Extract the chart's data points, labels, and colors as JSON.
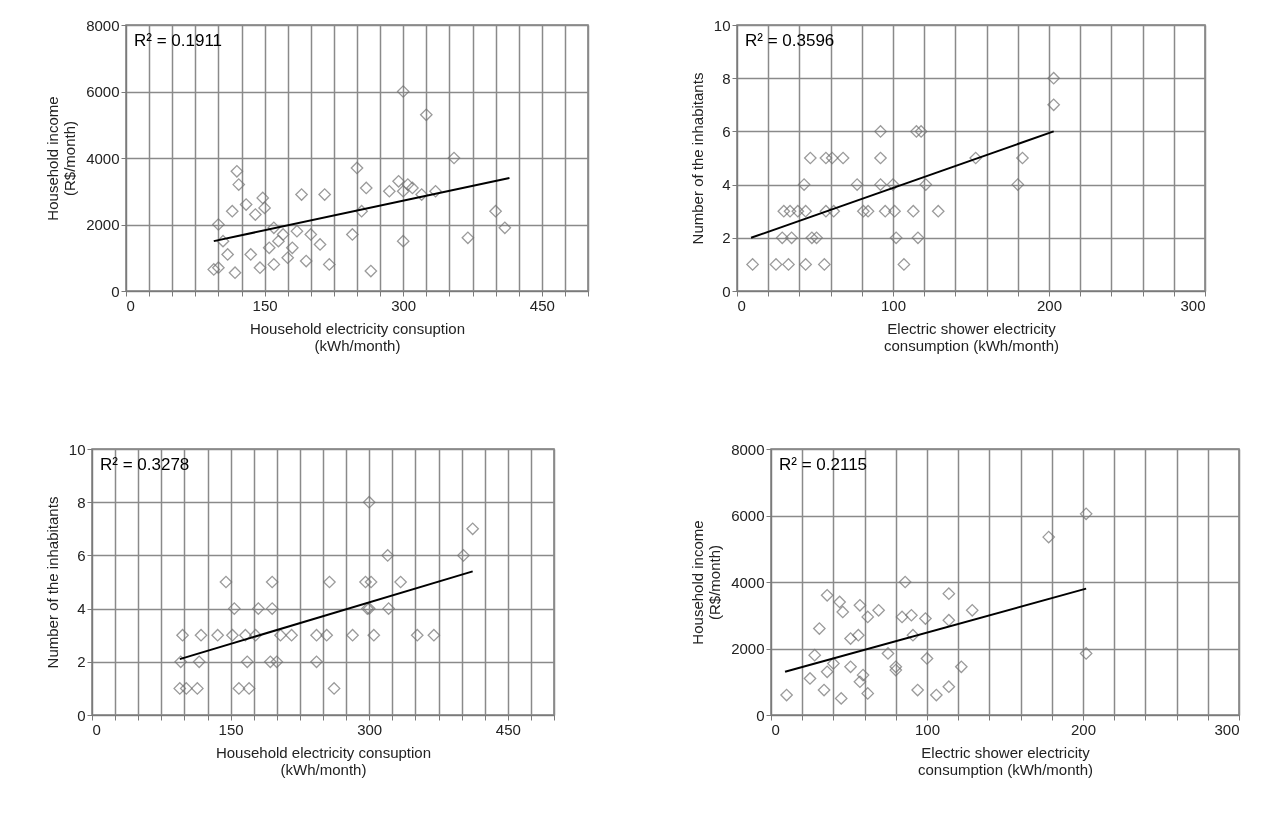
{
  "chart_data": [
    {
      "type": "scatter",
      "xlabel": "Household electricity consuption\n(kWh/month)",
      "ylabel": "Household income\n(R$/month)",
      "annotations": [
        "R² = 0.1911"
      ],
      "marker": "diamond",
      "grid": true,
      "xlim": [
        0,
        500
      ],
      "xticks": [
        0,
        {
          "value": 25,
          "label": null
        },
        {
          "value": 50,
          "label": null
        },
        {
          "value": 75,
          "label": null
        },
        {
          "value": 100,
          "label": null
        },
        {
          "value": 125,
          "label": null
        },
        150,
        {
          "value": 175,
          "label": null
        },
        {
          "value": 200,
          "label": null
        },
        {
          "value": 225,
          "label": null
        },
        {
          "value": 250,
          "label": null
        },
        {
          "value": 275,
          "label": null
        },
        300,
        {
          "value": 325,
          "label": null
        },
        {
          "value": 350,
          "label": null
        },
        {
          "value": 375,
          "label": null
        },
        {
          "value": 400,
          "label": null
        },
        {
          "value": 425,
          "label": null
        },
        450,
        {
          "value": 475,
          "label": null
        },
        {
          "value": 500,
          "label": null
        }
      ],
      "ylim": [
        0,
        8000
      ],
      "yticks": [
        0,
        2000,
        4000,
        6000,
        8000
      ],
      "series": [
        {
          "color": "#707070",
          "x": [
            95,
            100,
            100,
            105,
            110,
            115,
            118,
            120,
            122,
            130,
            135,
            140,
            145,
            148,
            150,
            155,
            160,
            160,
            165,
            170,
            175,
            180,
            185,
            190,
            195,
            200,
            210,
            215,
            220,
            245,
            250,
            255,
            260,
            265,
            285,
            295,
            300,
            300,
            300,
            305,
            310,
            320,
            325,
            335,
            355,
            370,
            400,
            410
          ],
          "values": [
            650,
            700,
            2000,
            1500,
            1100,
            2400,
            550,
            3600,
            3200,
            2600,
            1100,
            2300,
            700,
            2800,
            2500,
            1300,
            800,
            1900,
            1500,
            1700,
            1000,
            1300,
            1800,
            2900,
            900,
            1700,
            1400,
            2900,
            800,
            1700,
            3700,
            2400,
            3100,
            600,
            3000,
            3300,
            6000,
            1500,
            3000,
            3200,
            3100,
            2900,
            5300,
            3000,
            4000,
            1600,
            2400,
            1900
          ]
        },
        {
          "type": "line",
          "marker": "none",
          "color": "#000000",
          "x": [
            95,
            415
          ],
          "values": [
            1500,
            3400
          ]
        }
      ]
    },
    {
      "type": "scatter",
      "xlabel": "Electric shower electricity\nconsumption (kWh/month)",
      "ylabel": "Number of the inhabitants",
      "annotations": [
        "R² = 0.3596"
      ],
      "marker": "diamond",
      "grid": true,
      "xlim": [
        0,
        300
      ],
      "xticks": [
        0,
        {
          "value": 20,
          "label": null
        },
        {
          "value": 40,
          "label": null
        },
        {
          "value": 60,
          "label": null
        },
        {
          "value": 80,
          "label": null
        },
        100,
        {
          "value": 120,
          "label": null
        },
        {
          "value": 140,
          "label": null
        },
        {
          "value": 160,
          "label": null
        },
        {
          "value": 180,
          "label": null
        },
        200,
        {
          "value": 220,
          "label": null
        },
        {
          "value": 240,
          "label": null
        },
        {
          "value": 260,
          "label": null
        },
        {
          "value": 280,
          "label": null
        },
        300
      ],
      "ylim": [
        0,
        10
      ],
      "yticks": [
        0,
        2,
        4,
        6,
        8,
        10
      ],
      "series": [
        {
          "color": "#707070",
          "x": [
            10,
            25,
            33,
            44,
            56,
            107,
            29,
            35,
            48,
            51,
            102,
            116,
            30,
            34,
            39,
            44,
            57,
            62,
            81,
            84,
            95,
            101,
            113,
            129,
            43,
            77,
            92,
            100,
            121,
            180,
            47,
            57,
            61,
            68,
            92,
            153,
            183,
            92,
            115,
            118,
            203,
            203
          ],
          "values": [
            1,
            1,
            1,
            1,
            1,
            1,
            2,
            2,
            2,
            2,
            2,
            2,
            3,
            3,
            3,
            3,
            3,
            3,
            3,
            3,
            3,
            3,
            3,
            3,
            4,
            4,
            4,
            4,
            4,
            4,
            5,
            5,
            5,
            5,
            5,
            5,
            5,
            6,
            6,
            6,
            7,
            8
          ]
        },
        {
          "type": "line",
          "marker": "none",
          "color": "#000000",
          "x": [
            9,
            203
          ],
          "values": [
            2,
            6
          ]
        }
      ]
    },
    {
      "type": "scatter",
      "xlabel": "Household electricity consuption\n(kWh/month)",
      "ylabel": "Number of the inhabitants",
      "annotations": [
        "R² = 0.3278"
      ],
      "marker": "diamond",
      "grid": true,
      "xlim": [
        0,
        500
      ],
      "xticks": [
        0,
        {
          "value": 25,
          "label": null
        },
        {
          "value": 50,
          "label": null
        },
        {
          "value": 75,
          "label": null
        },
        {
          "value": 100,
          "label": null
        },
        {
          "value": 125,
          "label": null
        },
        150,
        {
          "value": 175,
          "label": null
        },
        {
          "value": 200,
          "label": null
        },
        {
          "value": 225,
          "label": null
        },
        {
          "value": 250,
          "label": null
        },
        {
          "value": 275,
          "label": null
        },
        300,
        {
          "value": 325,
          "label": null
        },
        {
          "value": 350,
          "label": null
        },
        {
          "value": 375,
          "label": null
        },
        {
          "value": 400,
          "label": null
        },
        {
          "value": 425,
          "label": null
        },
        450,
        {
          "value": 475,
          "label": null
        },
        {
          "value": 500,
          "label": null
        }
      ],
      "ylim": [
        0,
        10
      ],
      "yticks": [
        0,
        2,
        4,
        6,
        8,
        10
      ],
      "series": [
        {
          "color": "#707070",
          "x": [
            95,
            102,
            114,
            159,
            170,
            262,
            96,
            116,
            168,
            193,
            200,
            243,
            98,
            118,
            136,
            152,
            166,
            177,
            204,
            216,
            243,
            254,
            282,
            305,
            352,
            370,
            154,
            180,
            195,
            298,
            300,
            321,
            145,
            195,
            257,
            296,
            302,
            334,
            320,
            402,
            412,
            300
          ],
          "values": [
            1,
            1,
            1,
            1,
            1,
            1,
            2,
            2,
            2,
            2,
            2,
            2,
            3,
            3,
            3,
            3,
            3,
            3,
            3,
            3,
            3,
            3,
            3,
            3,
            3,
            3,
            4,
            4,
            4,
            4,
            4,
            4,
            5,
            5,
            5,
            5,
            5,
            5,
            6,
            6,
            7,
            8
          ]
        },
        {
          "type": "line",
          "marker": "none",
          "color": "#000000",
          "x": [
            95,
            412
          ],
          "values": [
            2.1,
            5.4
          ]
        }
      ]
    },
    {
      "type": "scatter",
      "xlabel": "Electric shower electricity\nconsumption (kWh/month)",
      "ylabel": "Household income\n(R$/month)",
      "annotations": [
        "R² = 0.2115"
      ],
      "marker": "diamond",
      "grid": true,
      "xlim": [
        0,
        300
      ],
      "xticks": [
        0,
        {
          "value": 20,
          "label": null
        },
        {
          "value": 40,
          "label": null
        },
        {
          "value": 60,
          "label": null
        },
        {
          "value": 80,
          "label": null
        },
        100,
        {
          "value": 120,
          "label": null
        },
        {
          "value": 140,
          "label": null
        },
        {
          "value": 160,
          "label": null
        },
        {
          "value": 180,
          "label": null
        },
        200,
        {
          "value": 220,
          "label": null
        },
        {
          "value": 240,
          "label": null
        },
        {
          "value": 260,
          "label": null
        },
        {
          "value": 280,
          "label": null
        },
        300
      ],
      "ylim": [
        0,
        8000
      ],
      "yticks": [
        0,
        2000,
        4000,
        6000,
        8000
      ],
      "series": [
        {
          "color": "#707070",
          "x": [
            10,
            25,
            28,
            31,
            36,
            34,
            36,
            40,
            44,
            45,
            46,
            51,
            51,
            56,
            57,
            57,
            59,
            62,
            62,
            69,
            75,
            80,
            80,
            84,
            86,
            90,
            91,
            94,
            99,
            100,
            106,
            114,
            114,
            114,
            122,
            129,
            178,
            202,
            202
          ],
          "values": [
            600,
            1100,
            1800,
            2600,
            3600,
            750,
            1300,
            1550,
            3400,
            500,
            3100,
            2300,
            1450,
            2400,
            3300,
            1000,
            1200,
            650,
            2950,
            3150,
            1850,
            1350,
            1450,
            2950,
            4000,
            3000,
            2400,
            750,
            2900,
            1700,
            600,
            3650,
            850,
            2850,
            1450,
            3150,
            5350,
            6050,
            1850
          ]
        },
        {
          "type": "line",
          "marker": "none",
          "color": "#000000",
          "x": [
            9,
            202
          ],
          "values": [
            1300,
            3800
          ]
        }
      ]
    }
  ]
}
